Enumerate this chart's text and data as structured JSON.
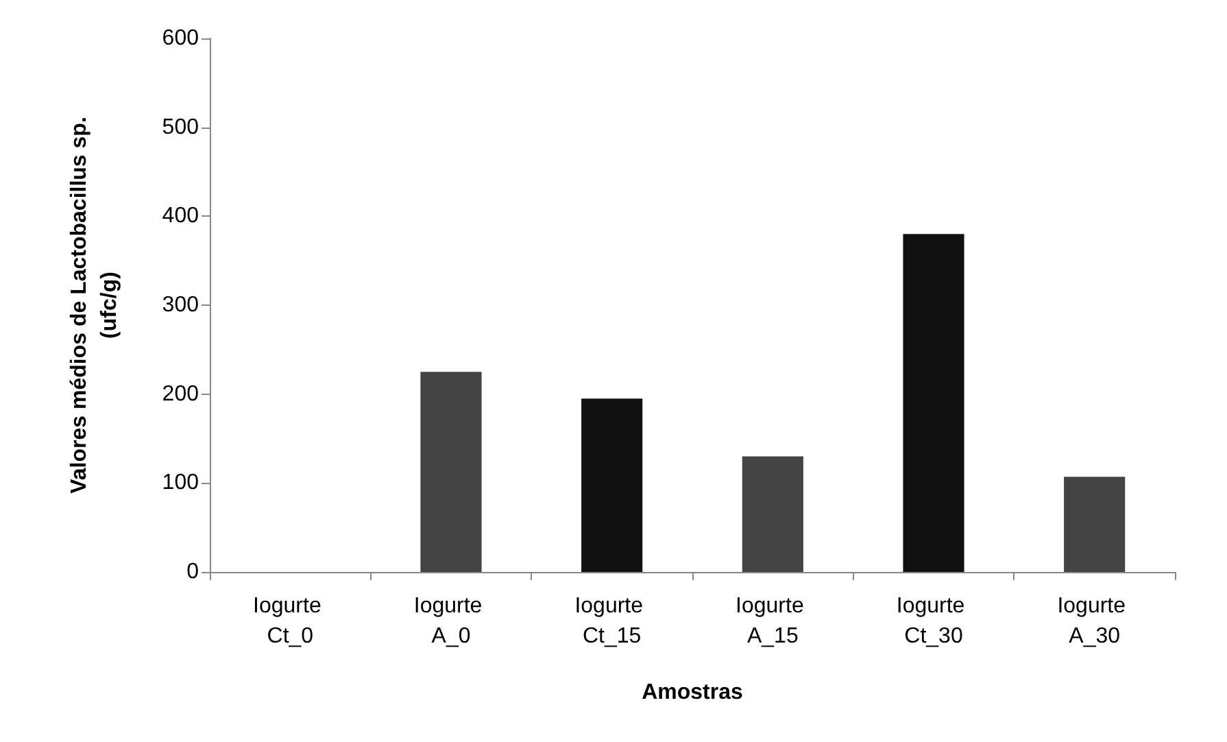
{
  "chart_data": {
    "type": "bar",
    "xlabel": "Amostras",
    "ylabel": "Valores médios de Lactobacillus sp. (ufc/g)",
    "categories": [
      "Iogurte Ct_0",
      "Iogurte A_0",
      "Iogurte Ct_15",
      "Iogurte A_15",
      "Iogurte Ct_30",
      "Iogurte A_30"
    ],
    "values": [
      0,
      225,
      195,
      130,
      380,
      107
    ],
    "colors": [
      "#111111",
      "#444444",
      "#111111",
      "#444444",
      "#111111",
      "#444444"
    ],
    "ylim": [
      0,
      600
    ],
    "yticks": [
      0,
      100,
      200,
      300,
      400,
      500,
      600
    ],
    "grid": false
  }
}
